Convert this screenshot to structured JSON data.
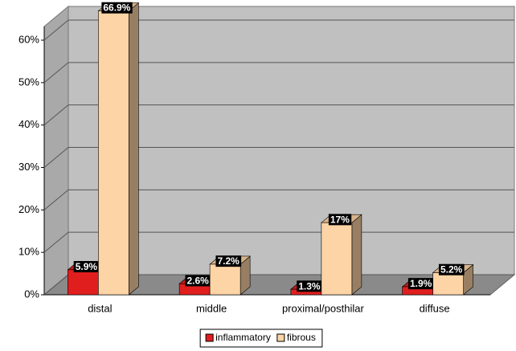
{
  "chart_data": {
    "type": "bar3d",
    "categories": [
      "distal",
      "middle",
      "proximal/posthilar",
      "diffuse"
    ],
    "series": [
      {
        "name": "inflammatory",
        "color": "#e01e1e",
        "values": [
          5.9,
          2.6,
          1.3,
          1.9
        ],
        "value_labels": [
          "5.9%",
          "2.6%",
          "1.3%",
          "1.9%"
        ]
      },
      {
        "name": "fibrous",
        "color": "#fdd4a6",
        "values": [
          66.9,
          7.2,
          17,
          5.2
        ],
        "value_labels": [
          "66.9%",
          "7.2%",
          "17%",
          "5.2%"
        ]
      }
    ],
    "ylim": [
      0,
      60
    ],
    "yticks": [
      {
        "value": 0,
        "label": "0%"
      },
      {
        "value": 10,
        "label": "10%"
      },
      {
        "value": 20,
        "label": "20%"
      },
      {
        "value": 30,
        "label": "30%"
      },
      {
        "value": 40,
        "label": "40%"
      },
      {
        "value": 50,
        "label": "50%"
      },
      {
        "value": 60,
        "label": "60%"
      }
    ],
    "grid": true,
    "legend": "bottom"
  }
}
